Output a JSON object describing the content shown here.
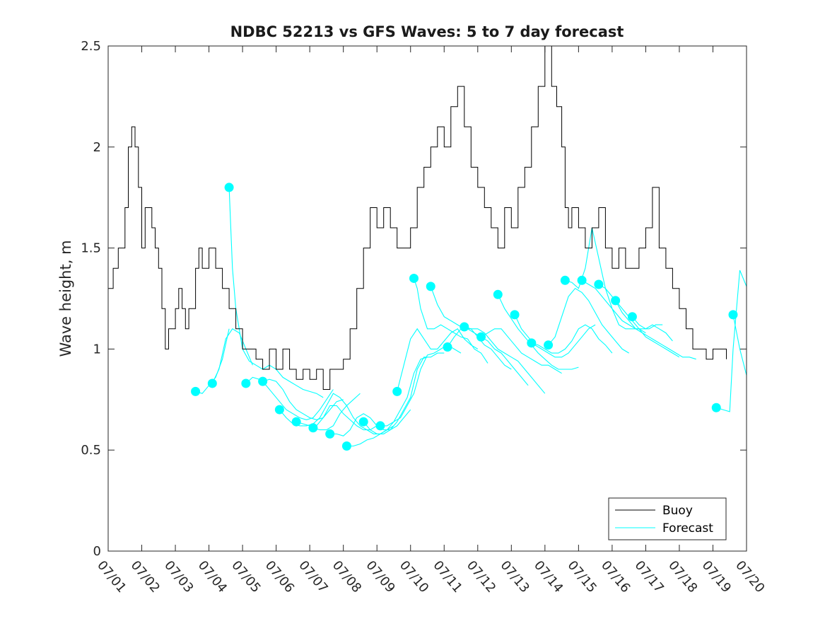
{
  "chart_data": {
    "type": "line",
    "title": "NDBC 52213 vs GFS Waves: 5 to 7 day forecast",
    "xlabel": "",
    "ylabel": "Wave height, m",
    "xlim": [
      0,
      19
    ],
    "ylim": [
      0,
      2.5
    ],
    "x_is_date": true,
    "x_ticks": [
      0,
      1,
      2,
      3,
      4,
      5,
      6,
      7,
      8,
      9,
      10,
      11,
      12,
      13,
      14,
      15,
      16,
      17,
      18,
      19
    ],
    "x_tick_labels": [
      "07/01",
      "07/02",
      "07/03",
      "07/04",
      "07/05",
      "07/06",
      "07/07",
      "07/08",
      "07/09",
      "07/10",
      "07/11",
      "07/12",
      "07/13",
      "07/14",
      "07/15",
      "07/16",
      "07/17",
      "07/18",
      "07/19",
      "07/20"
    ],
    "y_ticks": [
      0,
      0.5,
      1,
      1.5,
      2,
      2.5
    ],
    "y_tick_labels": [
      "0",
      "0.5",
      "1",
      "1.5",
      "2",
      "2.5"
    ],
    "grid": false,
    "legend_position": "bottom-right",
    "colors": {
      "buoy": "#000000",
      "forecast": "#00ffff",
      "axes": "#262626"
    },
    "legend": [
      {
        "name": "Buoy",
        "color": "#000000"
      },
      {
        "name": "Forecast",
        "color": "#00ffff"
      }
    ],
    "buoy": {
      "name": "Buoy",
      "x": [
        0.0,
        0.15,
        0.3,
        0.5,
        0.6,
        0.7,
        0.8,
        0.9,
        1.0,
        1.1,
        1.2,
        1.3,
        1.4,
        1.5,
        1.6,
        1.7,
        1.8,
        1.9,
        2.0,
        2.1,
        2.2,
        2.3,
        2.4,
        2.5,
        2.6,
        2.7,
        2.8,
        2.9,
        3.0,
        3.2,
        3.4,
        3.6,
        3.8,
        4.0,
        4.2,
        4.4,
        4.6,
        4.8,
        5.0,
        5.2,
        5.4,
        5.6,
        5.8,
        6.0,
        6.2,
        6.4,
        6.6,
        6.8,
        7.0,
        7.2,
        7.4,
        7.6,
        7.8,
        8.0,
        8.2,
        8.4,
        8.6,
        8.8,
        9.0,
        9.2,
        9.4,
        9.6,
        9.8,
        10.0,
        10.2,
        10.4,
        10.6,
        10.8,
        11.0,
        11.2,
        11.4,
        11.6,
        11.8,
        12.0,
        12.2,
        12.4,
        12.6,
        12.8,
        13.0,
        13.2,
        13.35,
        13.5,
        13.6,
        13.7,
        13.8,
        14.0,
        14.2,
        14.4,
        14.6,
        14.8,
        15.0,
        15.2,
        15.4,
        15.6,
        15.8,
        16.0,
        16.2,
        16.4,
        16.6,
        16.8,
        17.0,
        17.2,
        17.4,
        17.6,
        17.8,
        18.0,
        18.2,
        18.4
      ],
      "y": [
        1.3,
        1.4,
        1.5,
        1.7,
        2.0,
        2.1,
        2.0,
        1.8,
        1.5,
        1.7,
        1.7,
        1.6,
        1.5,
        1.4,
        1.2,
        1.0,
        1.1,
        1.1,
        1.2,
        1.3,
        1.2,
        1.1,
        1.2,
        1.2,
        1.4,
        1.5,
        1.4,
        1.4,
        1.5,
        1.4,
        1.3,
        1.2,
        1.1,
        1.0,
        1.0,
        0.95,
        0.9,
        1.0,
        0.9,
        1.0,
        0.9,
        0.85,
        0.9,
        0.85,
        0.9,
        0.8,
        0.9,
        0.9,
        0.95,
        1.1,
        1.3,
        1.5,
        1.7,
        1.6,
        1.7,
        1.6,
        1.5,
        1.5,
        1.6,
        1.8,
        1.9,
        2.0,
        2.1,
        2.0,
        2.2,
        2.3,
        2.1,
        1.9,
        1.8,
        1.7,
        1.6,
        1.5,
        1.7,
        1.6,
        1.8,
        1.9,
        2.1,
        2.3,
        2.5,
        2.3,
        2.2,
        2.0,
        1.7,
        1.6,
        1.7,
        1.6,
        1.5,
        1.6,
        1.7,
        1.5,
        1.4,
        1.5,
        1.4,
        1.4,
        1.5,
        1.6,
        1.8,
        1.5,
        1.4,
        1.3,
        1.2,
        1.1,
        1.0,
        1.0,
        0.95,
        1.0,
        1.0,
        0.95
      ]
    },
    "forecast_series": [
      {
        "x": [
          2.6,
          2.8,
          3.0,
          3.2,
          3.4,
          3.6
        ],
        "y": [
          0.79,
          0.78,
          0.82,
          0.86,
          0.95,
          1.1
        ]
      },
      {
        "x": [
          3.1,
          3.3,
          3.5,
          3.7,
          3.9,
          4.1,
          4.3
        ],
        "y": [
          0.83,
          0.9,
          1.05,
          1.1,
          1.08,
          1.0,
          0.92
        ]
      },
      {
        "x": [
          3.6,
          3.7,
          3.8,
          4.0,
          4.2,
          4.4,
          4.6,
          4.8,
          5.0,
          5.2,
          5.4,
          5.6,
          5.8,
          6.0,
          6.2,
          6.4
        ],
        "y": [
          1.8,
          1.4,
          1.2,
          1.0,
          0.94,
          0.92,
          0.9,
          0.92,
          0.9,
          0.86,
          0.84,
          0.82,
          0.8,
          0.79,
          0.78,
          0.76
        ]
      },
      {
        "x": [
          4.1,
          4.3,
          4.5,
          4.7,
          4.9,
          5.1,
          5.3,
          5.5,
          5.7,
          5.9,
          6.1,
          6.3,
          6.5,
          6.7
        ],
        "y": [
          0.83,
          0.86,
          0.85,
          0.82,
          0.78,
          0.74,
          0.7,
          0.68,
          0.66,
          0.65,
          0.66,
          0.7,
          0.75,
          0.8
        ]
      },
      {
        "x": [
          4.6,
          4.8,
          5.0,
          5.2,
          5.4,
          5.6,
          5.8,
          6.0,
          6.2,
          6.4,
          6.6,
          6.8,
          7.0
        ],
        "y": [
          0.84,
          0.85,
          0.84,
          0.8,
          0.74,
          0.7,
          0.68,
          0.66,
          0.65,
          0.66,
          0.7,
          0.74,
          0.75
        ]
      },
      {
        "x": [
          5.1,
          5.3,
          5.5,
          5.7,
          5.9,
          6.1,
          6.3,
          6.5,
          6.7,
          6.9,
          7.1,
          7.3,
          7.5
        ],
        "y": [
          0.7,
          0.66,
          0.63,
          0.62,
          0.62,
          0.63,
          0.66,
          0.72,
          0.78,
          0.76,
          0.72,
          0.75,
          0.78
        ]
      },
      {
        "x": [
          5.6,
          5.8,
          6.0,
          6.2,
          6.4,
          6.6,
          6.8,
          7.0,
          7.2,
          7.4,
          7.6,
          7.8,
          8.0
        ],
        "y": [
          0.64,
          0.63,
          0.62,
          0.62,
          0.66,
          0.72,
          0.72,
          0.68,
          0.65,
          0.62,
          0.6,
          0.6,
          0.62
        ]
      },
      {
        "x": [
          6.1,
          6.3,
          6.5,
          6.7,
          6.9,
          7.1,
          7.3,
          7.5,
          7.7,
          7.9,
          8.1,
          8.3,
          8.5
        ],
        "y": [
          0.61,
          0.6,
          0.6,
          0.62,
          0.68,
          0.72,
          0.66,
          0.62,
          0.6,
          0.58,
          0.58,
          0.6,
          0.62
        ]
      },
      {
        "x": [
          6.6,
          6.8,
          7.0,
          7.2,
          7.4,
          7.6,
          7.8,
          8.0,
          8.2,
          8.4,
          8.6,
          8.8,
          9.0
        ],
        "y": [
          0.58,
          0.58,
          0.57,
          0.6,
          0.66,
          0.68,
          0.66,
          0.62,
          0.6,
          0.6,
          0.62,
          0.66,
          0.7
        ]
      },
      {
        "x": [
          7.1,
          7.3,
          7.5,
          7.7,
          7.9,
          8.1,
          8.3,
          8.5,
          8.7,
          8.9,
          9.1,
          9.3,
          9.5
        ],
        "y": [
          0.52,
          0.52,
          0.53,
          0.55,
          0.56,
          0.58,
          0.6,
          0.64,
          0.7,
          0.76,
          0.88,
          0.95,
          0.96
        ]
      },
      {
        "x": [
          7.6,
          7.8,
          8.0,
          8.2,
          8.4,
          8.6,
          8.8,
          9.0,
          9.2,
          9.4,
          9.6,
          9.8,
          10.0
        ],
        "y": [
          0.64,
          0.6,
          0.58,
          0.58,
          0.6,
          0.64,
          0.7,
          0.76,
          0.9,
          0.96,
          0.96,
          0.98,
          0.98
        ]
      },
      {
        "x": [
          8.1,
          8.3,
          8.5,
          8.7,
          8.9,
          9.1,
          9.3,
          9.5,
          9.7,
          9.9,
          10.1,
          10.3,
          10.5
        ],
        "y": [
          0.62,
          0.62,
          0.64,
          0.66,
          0.72,
          0.78,
          0.9,
          0.97,
          0.98,
          1.0,
          1.02,
          1.0,
          0.98
        ]
      },
      {
        "x": [
          8.6,
          8.8,
          9.0,
          9.2,
          9.4,
          9.6,
          9.8,
          10.0,
          10.2,
          10.4,
          10.6,
          10.8,
          11.0
        ],
        "y": [
          0.79,
          0.92,
          1.05,
          1.1,
          1.05,
          1.0,
          1.0,
          1.04,
          1.08,
          1.1,
          1.05,
          1.02,
          1.0
        ]
      },
      {
        "x": [
          9.1,
          9.2,
          9.3,
          9.5,
          9.7,
          9.9,
          10.1,
          10.3,
          10.5,
          10.7,
          10.9,
          11.1,
          11.3
        ],
        "y": [
          1.35,
          1.3,
          1.2,
          1.1,
          1.1,
          1.12,
          1.1,
          1.08,
          1.06,
          1.05,
          1.0,
          0.98,
          0.93
        ]
      },
      {
        "x": [
          9.6,
          9.8,
          10.0,
          10.2,
          10.4,
          10.6,
          10.8,
          11.0,
          11.2,
          11.4,
          11.6,
          11.8,
          12.0
        ],
        "y": [
          1.31,
          1.22,
          1.16,
          1.14,
          1.12,
          1.1,
          1.1,
          1.06,
          1.02,
          1.0,
          0.96,
          0.92,
          0.9
        ]
      },
      {
        "x": [
          10.1,
          10.3,
          10.5,
          10.7,
          10.9,
          11.1,
          11.3,
          11.5,
          11.7,
          11.9,
          12.1,
          12.3,
          12.5
        ],
        "y": [
          1.01,
          1.06,
          1.1,
          1.1,
          1.08,
          1.06,
          1.04,
          1.0,
          0.98,
          0.94,
          0.9,
          0.86,
          0.82
        ]
      },
      {
        "x": [
          10.6,
          10.8,
          11.0,
          11.2,
          11.4,
          11.6,
          11.8,
          12.0,
          12.2,
          12.4,
          12.6,
          12.8,
          13.0
        ],
        "y": [
          1.11,
          1.1,
          1.1,
          1.08,
          1.04,
          1.0,
          0.98,
          0.96,
          0.94,
          0.9,
          0.86,
          0.82,
          0.78
        ]
      },
      {
        "x": [
          11.1,
          11.3,
          11.5,
          11.7,
          11.9,
          12.1,
          12.3,
          12.5,
          12.7,
          12.9,
          13.1,
          13.3,
          13.5
        ],
        "y": [
          1.06,
          1.08,
          1.1,
          1.1,
          1.06,
          1.02,
          0.98,
          0.96,
          0.94,
          0.92,
          0.92,
          0.9,
          0.88
        ]
      },
      {
        "x": [
          11.6,
          11.8,
          12.0,
          12.2,
          12.4,
          12.6,
          12.8,
          13.0,
          13.2,
          13.4,
          13.6,
          13.8,
          14.0
        ],
        "y": [
          1.27,
          1.2,
          1.15,
          1.1,
          1.06,
          1.02,
          0.98,
          0.95,
          0.92,
          0.9,
          0.9,
          0.9,
          0.91
        ]
      },
      {
        "x": [
          12.1,
          12.3,
          12.5,
          12.7,
          12.9,
          13.1,
          13.3,
          13.5,
          13.7,
          13.9,
          14.1,
          14.3,
          14.5
        ],
        "y": [
          1.17,
          1.1,
          1.06,
          1.02,
          1.0,
          0.98,
          0.96,
          0.96,
          0.98,
          1.02,
          1.06,
          1.1,
          1.12
        ]
      },
      {
        "x": [
          12.6,
          12.8,
          13.0,
          13.2,
          13.4,
          13.6,
          13.8,
          14.0,
          14.2,
          14.4,
          14.6,
          14.8,
          15.0
        ],
        "y": [
          1.03,
          1.02,
          1.0,
          0.98,
          0.98,
          1.0,
          1.04,
          1.1,
          1.12,
          1.1,
          1.05,
          1.02,
          0.98
        ]
      },
      {
        "x": [
          13.1,
          13.3,
          13.5,
          13.7,
          13.9,
          14.1,
          14.3,
          14.5,
          14.7,
          14.9,
          15.1,
          15.3,
          15.5
        ],
        "y": [
          1.02,
          1.06,
          1.16,
          1.26,
          1.3,
          1.28,
          1.24,
          1.18,
          1.12,
          1.08,
          1.04,
          1.0,
          0.98
        ]
      },
      {
        "x": [
          13.6,
          13.8,
          14.0,
          14.2,
          14.4,
          14.6,
          14.8,
          15.0,
          15.2,
          15.4,
          15.6,
          15.8,
          16.0
        ],
        "y": [
          1.34,
          1.33,
          1.3,
          1.4,
          1.6,
          1.45,
          1.3,
          1.2,
          1.12,
          1.1,
          1.1,
          1.1,
          1.08
        ]
      },
      {
        "x": [
          14.1,
          14.3,
          14.5,
          14.7,
          14.9,
          15.1,
          15.3,
          15.5,
          15.7,
          15.9,
          16.1,
          16.3,
          16.5
        ],
        "y": [
          1.34,
          1.32,
          1.3,
          1.26,
          1.22,
          1.18,
          1.14,
          1.12,
          1.1,
          1.1,
          1.1,
          1.12,
          1.12
        ]
      },
      {
        "x": [
          14.6,
          14.8,
          15.0,
          15.2,
          15.4,
          15.6,
          15.8,
          16.0,
          16.2,
          16.4,
          16.6,
          16.8,
          17.0
        ],
        "y": [
          1.32,
          1.3,
          1.26,
          1.22,
          1.18,
          1.14,
          1.1,
          1.06,
          1.04,
          1.02,
          1.0,
          0.98,
          0.96
        ]
      },
      {
        "x": [
          15.1,
          15.3,
          15.5,
          15.7,
          15.9,
          16.1,
          16.3,
          16.5,
          16.7,
          16.9,
          17.1,
          17.3,
          17.5
        ],
        "y": [
          1.24,
          1.18,
          1.14,
          1.1,
          1.08,
          1.06,
          1.04,
          1.02,
          1.0,
          0.98,
          0.96,
          0.96,
          0.95
        ]
      },
      {
        "x": [
          15.6,
          15.8,
          16.0,
          16.2,
          16.4,
          16.6,
          16.8
        ],
        "y": [
          1.16,
          1.12,
          1.1,
          1.12,
          1.1,
          1.08,
          1.04
        ]
      },
      {
        "x": [
          18.1,
          18.3,
          18.5,
          18.6,
          18.8,
          19.0
        ],
        "y": [
          0.71,
          0.7,
          0.69,
          1.0,
          1.39,
          1.31
        ]
      },
      {
        "x": [
          18.6,
          18.8,
          19.0
        ],
        "y": [
          1.17,
          1.0,
          0.87
        ]
      }
    ]
  }
}
